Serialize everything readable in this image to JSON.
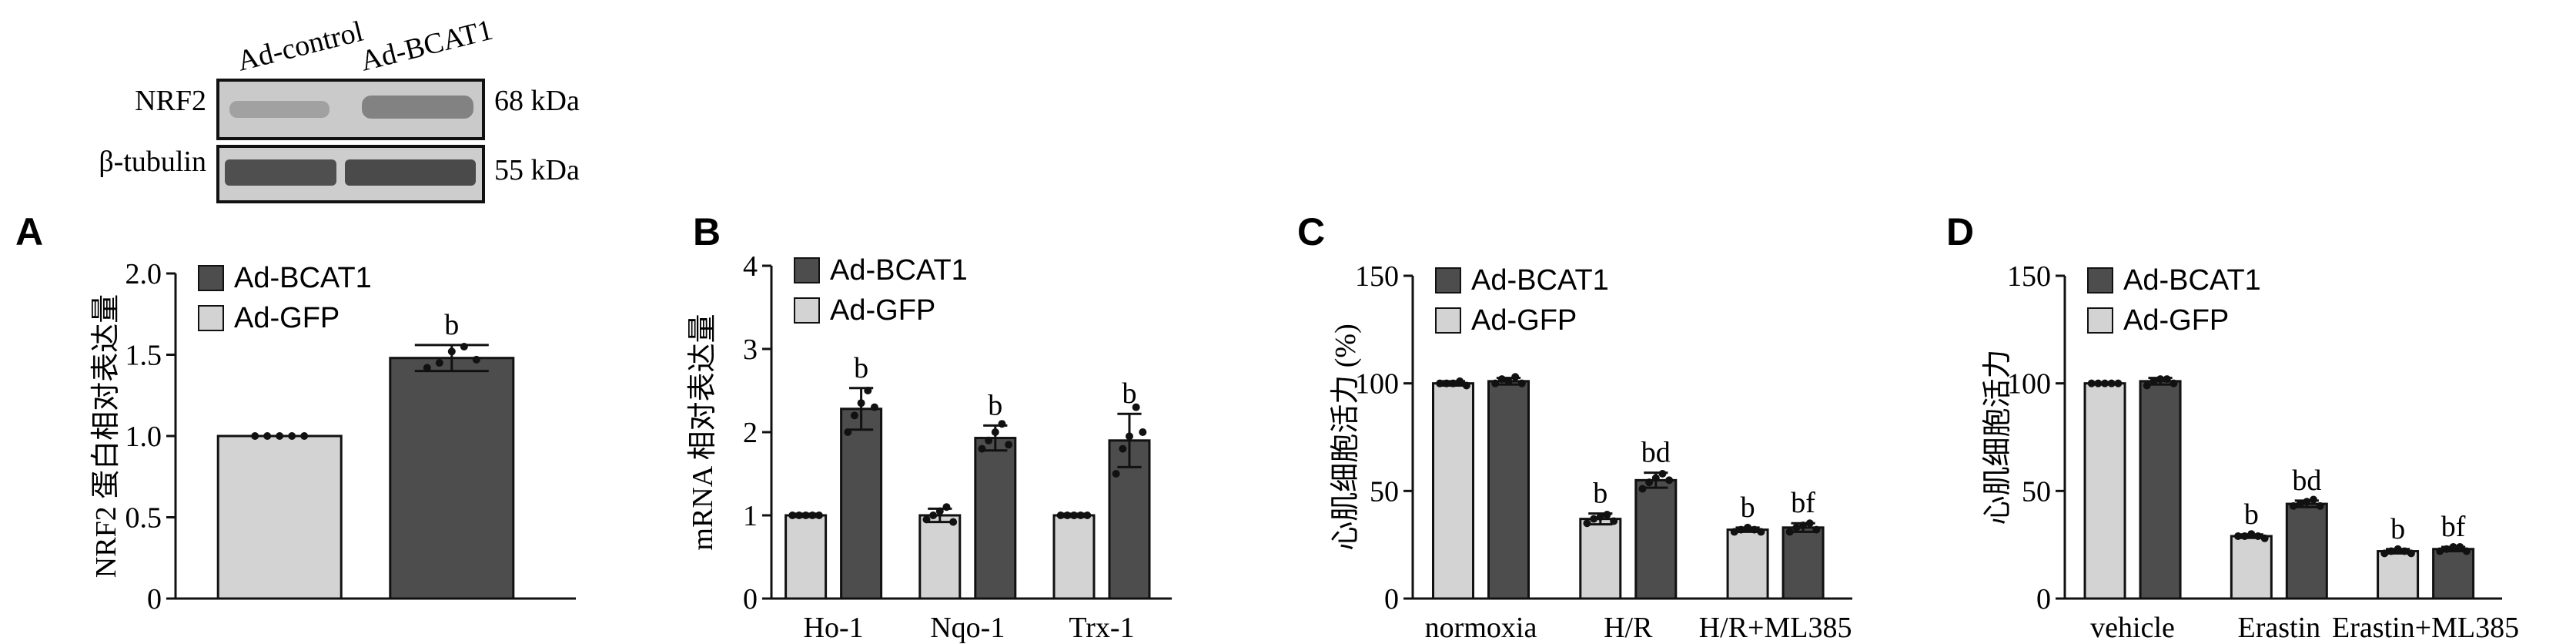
{
  "colors": {
    "light_bar": "#d3d3d3",
    "dark_bar": "#4d4d4d",
    "ink": "#111111",
    "blot_bg": "#c9c9c9",
    "band": "#5a5a5a"
  },
  "blot": {
    "lane_labels": [
      "Ad-control",
      "Ad-BCAT1"
    ],
    "rows": [
      {
        "protein": "NRF2",
        "size": "68 kDa"
      },
      {
        "protein": "β-tubulin",
        "size": "55 kDa"
      }
    ]
  },
  "chart_data": [
    {
      "panel": "A",
      "type": "bar",
      "ylabel": "NRF2 蛋白相对表达量",
      "ylim": [
        0,
        2.0
      ],
      "yticks": [
        "0",
        "0.5",
        "1.0",
        "1.5",
        "2.0"
      ],
      "categories": [
        ""
      ],
      "series": [
        {
          "name": "Ad-GFP",
          "color": "#d3d3d3",
          "values": [
            1.0
          ],
          "errors": [
            0.0
          ],
          "points": [
            [
              1.0,
              1.0,
              1.0,
              1.0,
              1.0
            ]
          ],
          "labels": [
            ""
          ]
        },
        {
          "name": "Ad-BCAT1",
          "color": "#4d4d4d",
          "values": [
            1.48
          ],
          "errors": [
            0.08
          ],
          "points": [
            [
              1.42,
              1.45,
              1.52,
              1.55,
              1.47
            ]
          ],
          "labels": [
            "b"
          ]
        }
      ],
      "legend": [
        "Ad-BCAT1",
        "Ad-GFP"
      ],
      "legend_position": "top-left"
    },
    {
      "panel": "B",
      "type": "bar",
      "ylabel": "mRNA 相对表达量",
      "ylim": [
        0,
        4
      ],
      "yticks": [
        "0",
        "1",
        "2",
        "3",
        "4"
      ],
      "categories": [
        "Ho-1",
        "Nqo-1",
        "Trx-1"
      ],
      "series": [
        {
          "name": "Ad-GFP",
          "color": "#d3d3d3",
          "values": [
            1.0,
            1.0,
            1.0
          ],
          "errors": [
            0.02,
            0.08,
            0.02
          ],
          "points": [
            [
              1.0,
              1.0,
              1.0,
              1.0,
              1.0
            ],
            [
              0.95,
              1.0,
              1.05,
              1.1,
              0.92
            ],
            [
              1.0,
              1.0,
              1.0,
              1.0,
              1.0
            ]
          ],
          "labels": [
            "",
            "",
            ""
          ]
        },
        {
          "name": "Ad-BCAT1",
          "color": "#4d4d4d",
          "values": [
            2.28,
            1.93,
            1.9
          ],
          "errors": [
            0.25,
            0.15,
            0.32
          ],
          "points": [
            [
              2.0,
              2.2,
              2.35,
              2.5,
              2.3
            ],
            [
              1.8,
              1.9,
              2.0,
              2.1,
              1.85
            ],
            [
              1.5,
              1.8,
              1.95,
              2.3,
              2.0
            ]
          ],
          "labels": [
            "b",
            "b",
            "b"
          ]
        }
      ],
      "legend": [
        "Ad-BCAT1",
        "Ad-GFP"
      ],
      "legend_position": "top-left"
    },
    {
      "panel": "C",
      "type": "bar",
      "ylabel": "心肌细胞活力 (%)",
      "ylim": [
        0,
        150
      ],
      "yticks": [
        "0",
        "50",
        "100",
        "150"
      ],
      "categories": [
        "normoxia",
        "H/R",
        "H/R+ML385"
      ],
      "series": [
        {
          "name": "Ad-GFP",
          "color": "#d3d3d3",
          "values": [
            100,
            37,
            32
          ],
          "errors": [
            1.0,
            2.5,
            1.0
          ],
          "points": [
            [
              100,
              100,
              100,
              101,
              99
            ],
            [
              35,
              37,
              38,
              39,
              36
            ],
            [
              31,
              32,
              33,
              32,
              31
            ]
          ],
          "labels": [
            "",
            "b",
            "b"
          ]
        },
        {
          "name": "Ad-BCAT1",
          "color": "#4d4d4d",
          "values": [
            101,
            55,
            33
          ],
          "errors": [
            1.5,
            3.5,
            2.0
          ],
          "points": [
            [
              100,
              102,
              101,
              103,
              100
            ],
            [
              51,
              54,
              56,
              58,
              55
            ],
            [
              31,
              33,
              34,
              35,
              32
            ]
          ],
          "labels": [
            "",
            "bd",
            "bf"
          ]
        }
      ],
      "legend": [
        "Ad-BCAT1",
        "Ad-GFP"
      ],
      "legend_position": "top-left"
    },
    {
      "panel": "D",
      "type": "bar",
      "ylabel": "心肌细胞活力",
      "ylim": [
        0,
        150
      ],
      "yticks": [
        "0",
        "50",
        "100",
        "150"
      ],
      "categories": [
        "vehicle",
        "Erastin",
        "Erastin+ML385"
      ],
      "series": [
        {
          "name": "Ad-GFP",
          "color": "#d3d3d3",
          "values": [
            100,
            29,
            22
          ],
          "errors": [
            0.5,
            0.8,
            1.0
          ],
          "points": [
            [
              100,
              100,
              100,
              100,
              100
            ],
            [
              29,
              29,
              30,
              29,
              28
            ],
            [
              21,
              22,
              23,
              22,
              21
            ]
          ],
          "labels": [
            "",
            "b",
            "b"
          ]
        },
        {
          "name": "Ad-BCAT1",
          "color": "#4d4d4d",
          "values": [
            101,
            44,
            23
          ],
          "errors": [
            1.5,
            1.5,
            1.0
          ],
          "points": [
            [
              99,
              101,
              102,
              102,
              100
            ],
            [
              43,
              44,
              45,
              46,
              43
            ],
            [
              22,
              23,
              24,
              24,
              22
            ]
          ],
          "labels": [
            "",
            "bd",
            "bf"
          ]
        }
      ],
      "legend": [
        "Ad-BCAT1",
        "Ad-GFP"
      ],
      "legend_position": "top-left"
    }
  ]
}
